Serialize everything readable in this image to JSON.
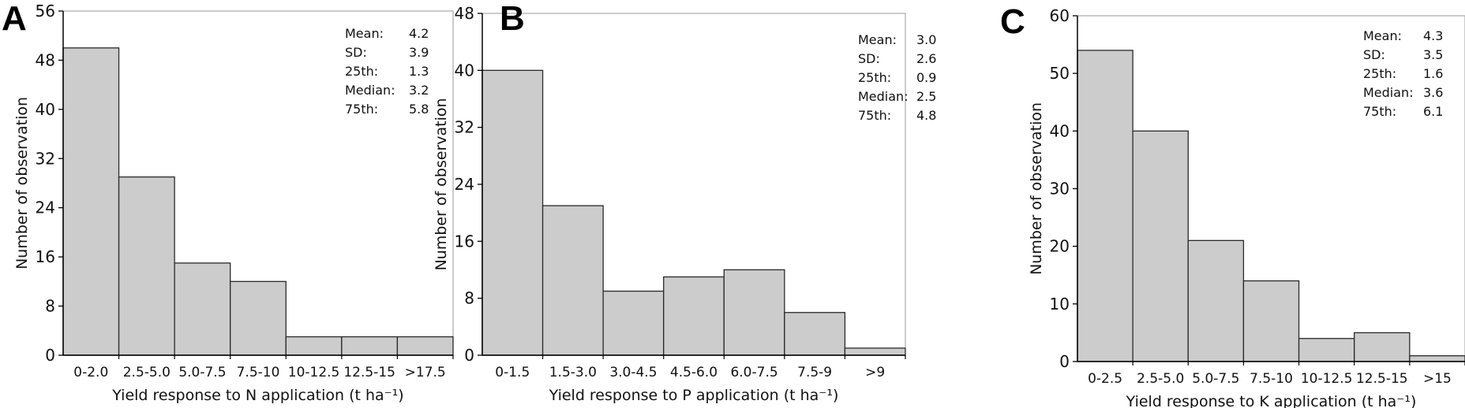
{
  "chart_data": [
    {
      "type": "bar",
      "panel_label": "A",
      "categories": [
        "0-2.0",
        "2.5-5.0",
        "5.0-7.5",
        "7.5-10",
        "10-12.5",
        "12.5-15",
        ">17.5"
      ],
      "values": [
        50,
        29,
        15,
        12,
        3,
        3,
        3
      ],
      "xlabel": "Yield response to N application (t ha⁻¹)",
      "ylabel": "Number of observation",
      "ylim": [
        0,
        56
      ],
      "yticks": [
        "0",
        "8",
        "16",
        "24",
        "32",
        "40",
        "48",
        "56"
      ],
      "bar_color": "#cccccc",
      "grid": false,
      "stats_placement": "top-right",
      "stats": [
        {
          "label": "Mean:",
          "value": "4.2"
        },
        {
          "label": "SD:",
          "value": "3.9"
        },
        {
          "label": "25th:",
          "value": "1.3"
        },
        {
          "label": "Median:",
          "value": "3.2"
        },
        {
          "label": "75th:",
          "value": "5.8"
        }
      ]
    },
    {
      "type": "bar",
      "panel_label": "B",
      "categories": [
        "0-1.5",
        "1.5-3.0",
        "3.0-4.5",
        "4.5-6.0",
        "6.0-7.5",
        "7.5-9",
        ">9"
      ],
      "values": [
        40,
        21,
        9,
        11,
        12,
        6,
        1
      ],
      "xlabel": "Yield response to P application (t ha⁻¹)",
      "ylabel": "Number of observation",
      "ylim": [
        0,
        48
      ],
      "yticks": [
        "0",
        "8",
        "16",
        "24",
        "32",
        "40",
        "48"
      ],
      "bar_color": "#cccccc",
      "grid": false,
      "stats_placement": "top-right",
      "stats": [
        {
          "label": "Mean:",
          "value": "3.0"
        },
        {
          "label": "SD:",
          "value": "2.6"
        },
        {
          "label": "25th:",
          "value": "0.9"
        },
        {
          "label": "Median:",
          "value": "2.5"
        },
        {
          "label": "75th:",
          "value": "4.8"
        }
      ]
    },
    {
      "type": "bar",
      "panel_label": "C",
      "categories": [
        "0-2.5",
        "2.5-5.0",
        "5.0-7.5",
        "7.5-10",
        "10-12.5",
        "12.5-15",
        ">15"
      ],
      "values": [
        54,
        40,
        21,
        14,
        4,
        5,
        1
      ],
      "xlabel": "Yield response to K application (t ha⁻¹)",
      "ylabel": "Number of observation",
      "ylim": [
        0,
        60
      ],
      "yticks": [
        "0",
        "10",
        "20",
        "30",
        "40",
        "50",
        "60"
      ],
      "bar_color": "#cccccc",
      "grid": false,
      "stats_placement": "top-right",
      "stats": [
        {
          "label": "Mean:",
          "value": "4.3"
        },
        {
          "label": "SD:",
          "value": "3.5"
        },
        {
          "label": "25th:",
          "value": "1.6"
        },
        {
          "label": "Median:",
          "value": "3.6"
        },
        {
          "label": "75th:",
          "value": "6.1"
        }
      ]
    }
  ]
}
